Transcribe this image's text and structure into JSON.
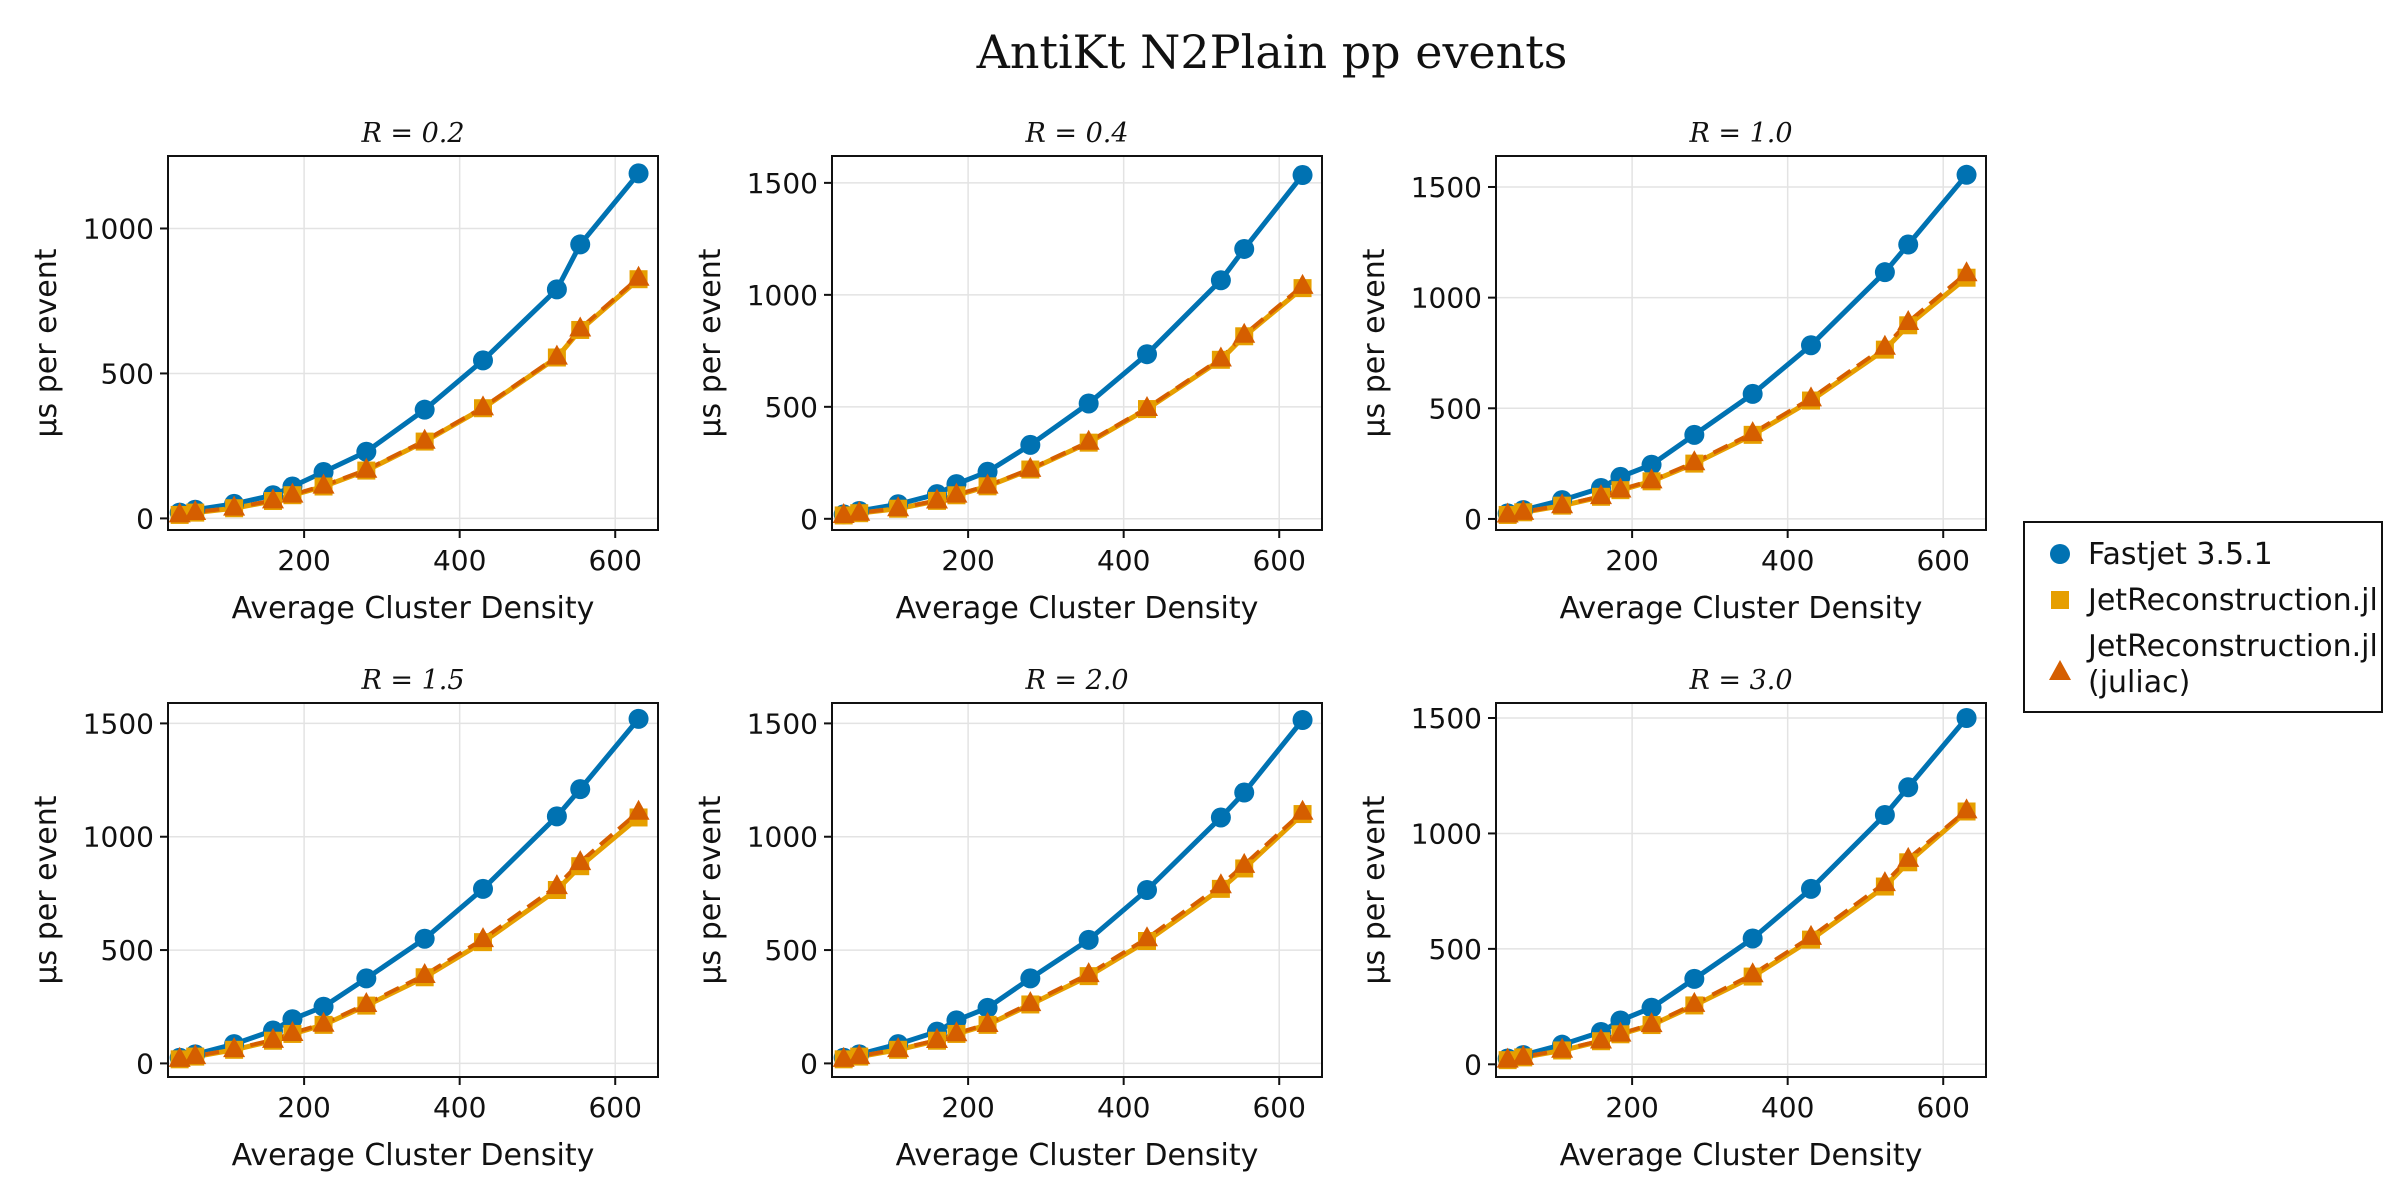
{
  "title": "AntiKt N2Plain pp events",
  "colors": {
    "Fastjet 3.5.1": "#0072B2",
    "JetReconstruction.jl": "#E69F00",
    "JetReconstruction.jl (juliac)": "#D55E00"
  },
  "legend": {
    "placement": "right",
    "entries": [
      {
        "series": "Fastjet 3.5.1",
        "lines": [
          "Fastjet 3.5.1"
        ],
        "marker": "circle"
      },
      {
        "series": "JetReconstruction.jl",
        "lines": [
          "JetReconstruction.jl"
        ],
        "marker": "square"
      },
      {
        "series": "JetReconstruction.jl (juliac)",
        "lines": [
          "JetReconstruction.jl",
          "(juliac)"
        ],
        "marker": "triangle"
      }
    ]
  },
  "chart_data": [
    {
      "type": "line",
      "title": "R = 0.2",
      "xlabel": "Average Cluster Density",
      "ylabel": "μs per event",
      "xlim": [
        25,
        655
      ],
      "ylim": [
        -40,
        1250
      ],
      "xticks": [
        200,
        400,
        600
      ],
      "yticks": [
        0,
        500,
        1000
      ],
      "grid": true,
      "x": [
        40,
        60,
        110,
        160,
        185,
        225,
        280,
        355,
        430,
        525,
        555,
        630
      ],
      "series": [
        {
          "name": "Fastjet 3.5.1",
          "marker": "circle",
          "values": [
            20,
            30,
            50,
            80,
            110,
            160,
            230,
            375,
            545,
            790,
            945,
            1190
          ]
        },
        {
          "name": "JetReconstruction.jl",
          "marker": "square",
          "values": [
            12,
            20,
            35,
            60,
            80,
            110,
            165,
            265,
            380,
            555,
            650,
            825
          ]
        },
        {
          "name": "JetReconstruction.jl (juliac)",
          "marker": "triangle",
          "values": [
            14,
            22,
            37,
            62,
            82,
            113,
            168,
            268,
            383,
            558,
            655,
            830
          ]
        }
      ]
    },
    {
      "type": "line",
      "title": "R = 0.4",
      "xlabel": "Average Cluster Density",
      "ylabel": "μs per event",
      "xlim": [
        25,
        655
      ],
      "ylim": [
        -50,
        1620
      ],
      "xticks": [
        200,
        400,
        600
      ],
      "yticks": [
        0,
        500,
        1000,
        1500
      ],
      "grid": true,
      "x": [
        40,
        60,
        110,
        160,
        185,
        225,
        280,
        355,
        430,
        525,
        555,
        630
      ],
      "series": [
        {
          "name": "Fastjet 3.5.1",
          "marker": "circle",
          "values": [
            20,
            35,
            65,
            110,
            155,
            210,
            330,
            515,
            735,
            1065,
            1205,
            1535
          ]
        },
        {
          "name": "JetReconstruction.jl",
          "marker": "square",
          "values": [
            15,
            25,
            45,
            80,
            105,
            145,
            220,
            340,
            490,
            710,
            815,
            1030
          ]
        },
        {
          "name": "JetReconstruction.jl (juliac)",
          "marker": "triangle",
          "values": [
            17,
            27,
            47,
            82,
            108,
            148,
            223,
            344,
            495,
            716,
            822,
            1040
          ]
        }
      ]
    },
    {
      "type": "line",
      "title": "R = 1.0",
      "xlabel": "Average Cluster Density",
      "ylabel": "μs per event",
      "xlim": [
        25,
        655
      ],
      "ylim": [
        -50,
        1640
      ],
      "xticks": [
        200,
        400,
        600
      ],
      "yticks": [
        0,
        500,
        1000,
        1500
      ],
      "grid": true,
      "x": [
        40,
        60,
        110,
        160,
        185,
        225,
        280,
        355,
        430,
        525,
        555,
        630
      ],
      "series": [
        {
          "name": "Fastjet 3.5.1",
          "marker": "circle",
          "values": [
            25,
            40,
            85,
            140,
            190,
            245,
            380,
            565,
            785,
            1115,
            1240,
            1555
          ]
        },
        {
          "name": "JetReconstruction.jl",
          "marker": "square",
          "values": [
            18,
            30,
            60,
            100,
            130,
            170,
            250,
            380,
            535,
            765,
            875,
            1090
          ]
        },
        {
          "name": "JetReconstruction.jl (juliac)",
          "marker": "triangle",
          "values": [
            20,
            32,
            62,
            103,
            133,
            174,
            256,
            388,
            545,
            778,
            890,
            1110
          ]
        }
      ]
    },
    {
      "type": "line",
      "title": "R = 1.5",
      "xlabel": "Average Cluster Density",
      "ylabel": "μs per event",
      "xlim": [
        25,
        655
      ],
      "ylim": [
        -60,
        1590
      ],
      "xticks": [
        200,
        400,
        600
      ],
      "yticks": [
        0,
        500,
        1000,
        1500
      ],
      "grid": true,
      "x": [
        40,
        60,
        110,
        160,
        185,
        225,
        280,
        355,
        430,
        525,
        555,
        630
      ],
      "series": [
        {
          "name": "Fastjet 3.5.1",
          "marker": "circle",
          "values": [
            25,
            40,
            85,
            145,
            195,
            250,
            375,
            550,
            770,
            1090,
            1210,
            1520
          ]
        },
        {
          "name": "JetReconstruction.jl",
          "marker": "square",
          "values": [
            18,
            30,
            60,
            100,
            130,
            170,
            255,
            380,
            535,
            765,
            870,
            1085
          ]
        },
        {
          "name": "JetReconstruction.jl (juliac)",
          "marker": "triangle",
          "values": [
            20,
            32,
            63,
            104,
            134,
            175,
            262,
            390,
            548,
            782,
            888,
            1110
          ]
        }
      ]
    },
    {
      "type": "line",
      "title": "R = 2.0",
      "xlabel": "Average Cluster Density",
      "ylabel": "μs per event",
      "xlim": [
        25,
        655
      ],
      "ylim": [
        -60,
        1590
      ],
      "xticks": [
        200,
        400,
        600
      ],
      "yticks": [
        0,
        500,
        1000,
        1500
      ],
      "grid": true,
      "x": [
        40,
        60,
        110,
        160,
        185,
        225,
        280,
        355,
        430,
        525,
        555,
        630
      ],
      "series": [
        {
          "name": "Fastjet 3.5.1",
          "marker": "circle",
          "values": [
            25,
            40,
            85,
            140,
            190,
            245,
            375,
            545,
            765,
            1085,
            1195,
            1515
          ]
        },
        {
          "name": "JetReconstruction.jl",
          "marker": "square",
          "values": [
            18,
            30,
            60,
            100,
            130,
            170,
            260,
            385,
            540,
            770,
            860,
            1100
          ]
        },
        {
          "name": "JetReconstruction.jl (juliac)",
          "marker": "triangle",
          "values": [
            20,
            32,
            63,
            103,
            133,
            174,
            266,
            394,
            552,
            786,
            876,
            1110
          ]
        }
      ]
    },
    {
      "type": "line",
      "title": "R = 3.0",
      "xlabel": "Average Cluster Density",
      "ylabel": "μs per event",
      "xlim": [
        25,
        655
      ],
      "ylim": [
        -55,
        1565
      ],
      "xticks": [
        200,
        400,
        600
      ],
      "yticks": [
        0,
        500,
        1000,
        1500
      ],
      "grid": true,
      "x": [
        40,
        60,
        110,
        160,
        185,
        225,
        280,
        355,
        430,
        525,
        555,
        630
      ],
      "series": [
        {
          "name": "Fastjet 3.5.1",
          "marker": "circle",
          "values": [
            25,
            40,
            85,
            140,
            190,
            245,
            370,
            545,
            760,
            1080,
            1200,
            1500
          ]
        },
        {
          "name": "JetReconstruction.jl",
          "marker": "square",
          "values": [
            18,
            30,
            60,
            100,
            130,
            170,
            255,
            380,
            540,
            770,
            875,
            1095
          ]
        },
        {
          "name": "JetReconstruction.jl (juliac)",
          "marker": "triangle",
          "values": [
            20,
            32,
            63,
            103,
            133,
            174,
            262,
            390,
            552,
            785,
            890,
            1100
          ]
        }
      ]
    }
  ]
}
